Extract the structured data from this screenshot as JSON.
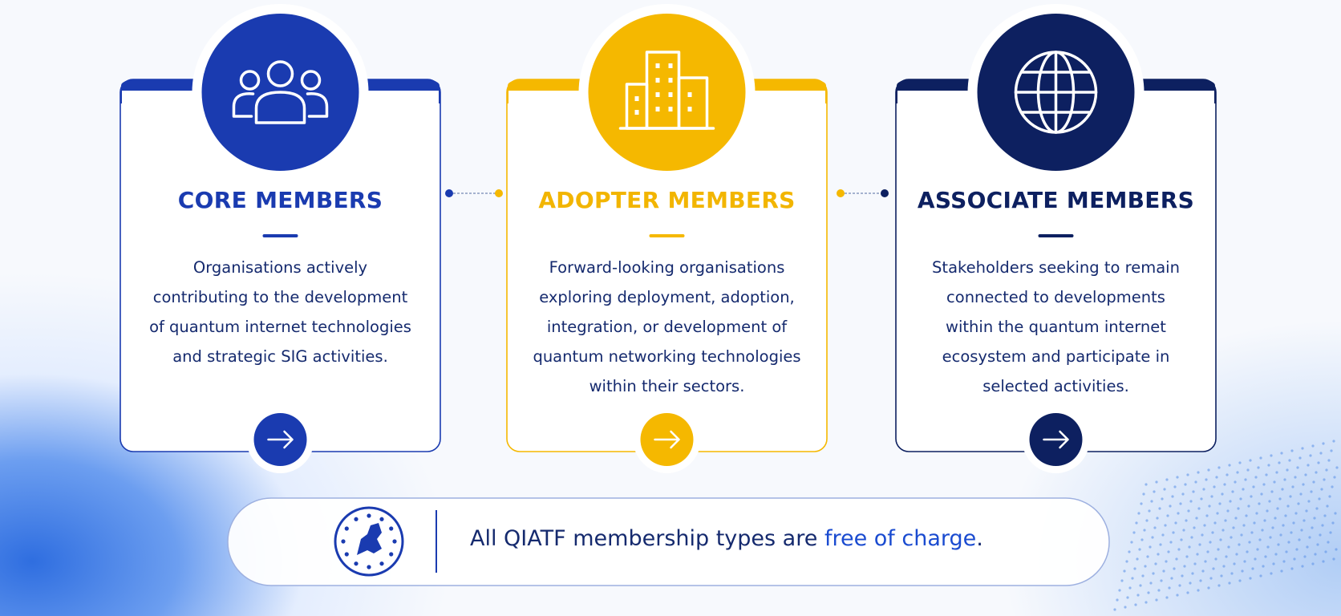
{
  "cards": [
    {
      "title": "CORE MEMBERS",
      "description": [
        "Organisations actively",
        "contributing to the development",
        "of quantum internet technologies",
        "and strategic SIG activities."
      ]
    },
    {
      "title": "ADOPTER MEMBERS",
      "description": [
        "Forward-looking organisations",
        "exploring deployment, adoption,",
        "integration, or development of",
        "quantum networking technologies",
        "within their sectors."
      ]
    },
    {
      "title": "ASSOCIATE MEMBERS",
      "description": [
        "Stakeholders seeking to remain",
        "connected to developments",
        "within the quantum internet",
        "ecosystem and participate in",
        "selected activities."
      ]
    }
  ],
  "footer": {
    "text": "All QIATF membership types are",
    "highlight": "free of charge",
    "end": "."
  }
}
